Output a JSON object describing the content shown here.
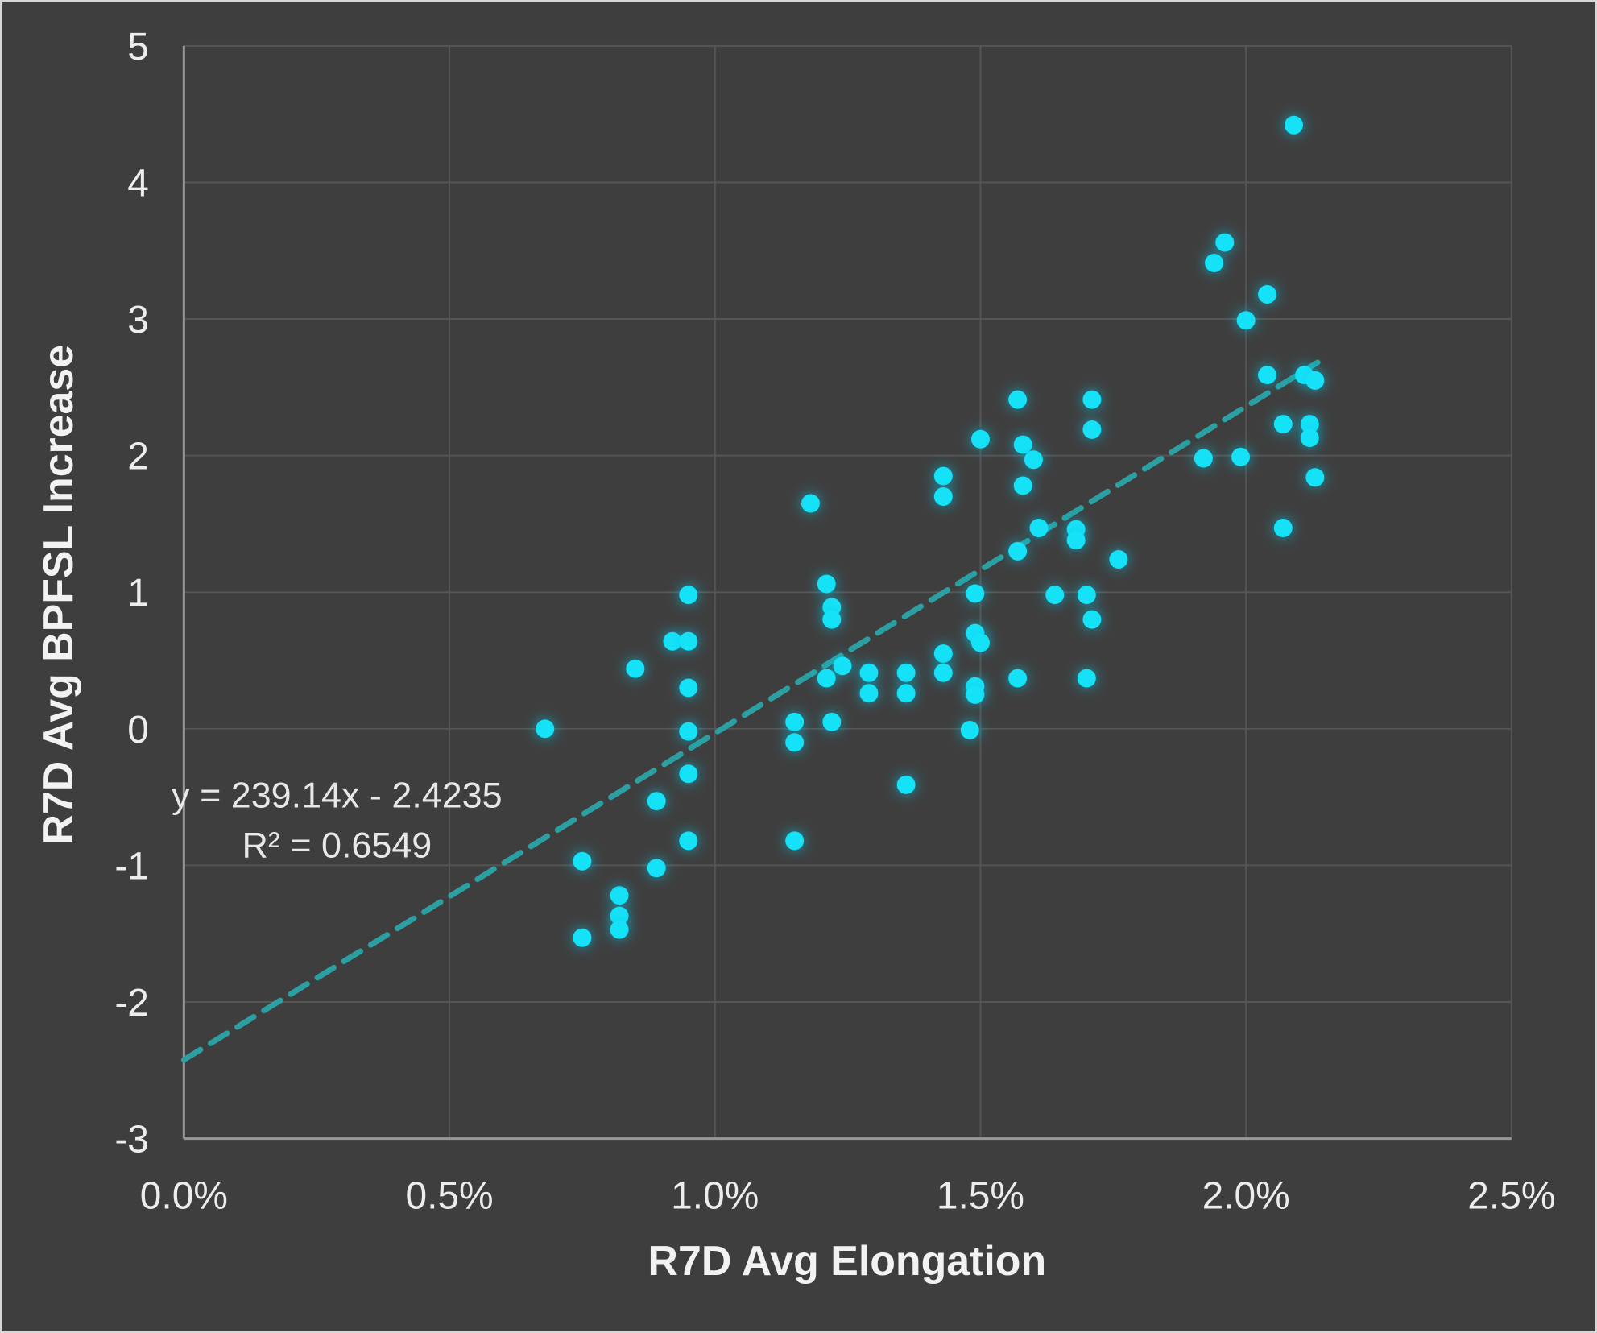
{
  "chart_data": {
    "type": "scatter",
    "title": "",
    "xlabel": "R7D Avg Elongation",
    "ylabel": "R7D Avg BPFSL Increase",
    "xlim": [
      0,
      2.5
    ],
    "ylim": [
      -3,
      5
    ],
    "grid": true,
    "legend_position": "none",
    "x_ticks": [
      {
        "value": 0.0,
        "label": "0.0%"
      },
      {
        "value": 0.5,
        "label": "0.5%"
      },
      {
        "value": 1.0,
        "label": "1.0%"
      },
      {
        "value": 1.5,
        "label": "1.5%"
      },
      {
        "value": 2.0,
        "label": "2.0%"
      },
      {
        "value": 2.5,
        "label": "2.5%"
      }
    ],
    "y_ticks": [
      {
        "value": 5,
        "label": "5"
      },
      {
        "value": 4,
        "label": "4"
      },
      {
        "value": 3,
        "label": "3"
      },
      {
        "value": 2,
        "label": "2"
      },
      {
        "value": 1,
        "label": "1"
      },
      {
        "value": 0,
        "label": "0"
      },
      {
        "value": -1,
        "label": "-1"
      },
      {
        "value": -2,
        "label": "-2"
      },
      {
        "value": -3,
        "label": "-3"
      }
    ],
    "series": [
      {
        "name": "R7D scatter",
        "marker": "circle-glow",
        "points": [
          [
            0.68,
            0.0
          ],
          [
            0.75,
            -0.97
          ],
          [
            0.75,
            -1.53
          ],
          [
            0.82,
            -1.22
          ],
          [
            0.82,
            -1.37
          ],
          [
            0.82,
            -1.47
          ],
          [
            0.85,
            0.44
          ],
          [
            0.89,
            -0.53
          ],
          [
            0.89,
            -1.02
          ],
          [
            0.92,
            0.64
          ],
          [
            0.95,
            0.98
          ],
          [
            0.95,
            0.64
          ],
          [
            0.95,
            0.3
          ],
          [
            0.95,
            -0.02
          ],
          [
            0.95,
            -0.33
          ],
          [
            0.95,
            -0.82
          ],
          [
            1.15,
            0.05
          ],
          [
            1.15,
            -0.1
          ],
          [
            1.15,
            -0.82
          ],
          [
            1.18,
            1.65
          ],
          [
            1.21,
            1.06
          ],
          [
            1.22,
            0.89
          ],
          [
            1.22,
            0.8
          ],
          [
            1.24,
            0.46
          ],
          [
            1.21,
            0.37
          ],
          [
            1.22,
            0.05
          ],
          [
            1.29,
            0.41
          ],
          [
            1.29,
            0.26
          ],
          [
            1.36,
            0.41
          ],
          [
            1.36,
            0.26
          ],
          [
            1.36,
            -0.41
          ],
          [
            1.43,
            1.85
          ],
          [
            1.43,
            1.7
          ],
          [
            1.43,
            0.55
          ],
          [
            1.43,
            0.41
          ],
          [
            1.49,
            0.99
          ],
          [
            1.49,
            0.7
          ],
          [
            1.5,
            0.63
          ],
          [
            1.49,
            0.31
          ],
          [
            1.49,
            0.25
          ],
          [
            1.48,
            -0.01
          ],
          [
            1.5,
            2.12
          ],
          [
            1.57,
            2.41
          ],
          [
            1.58,
            2.08
          ],
          [
            1.6,
            1.97
          ],
          [
            1.58,
            1.78
          ],
          [
            1.61,
            1.47
          ],
          [
            1.57,
            1.3
          ],
          [
            1.57,
            0.37
          ],
          [
            1.64,
            0.98
          ],
          [
            1.7,
            0.98
          ],
          [
            1.7,
            0.37
          ],
          [
            1.71,
            0.8
          ],
          [
            1.71,
            2.41
          ],
          [
            1.71,
            2.19
          ],
          [
            1.68,
            1.46
          ],
          [
            1.68,
            1.38
          ],
          [
            1.76,
            1.24
          ],
          [
            1.92,
            1.98
          ],
          [
            1.99,
            1.99
          ],
          [
            1.94,
            3.41
          ],
          [
            1.96,
            3.56
          ],
          [
            2.0,
            2.99
          ],
          [
            2.04,
            3.18
          ],
          [
            2.04,
            2.59
          ],
          [
            2.07,
            2.23
          ],
          [
            2.07,
            1.47
          ],
          [
            2.09,
            4.42
          ],
          [
            2.11,
            2.59
          ],
          [
            2.13,
            2.55
          ],
          [
            2.12,
            2.23
          ],
          [
            2.12,
            2.13
          ],
          [
            2.13,
            1.84
          ]
        ]
      }
    ],
    "trendline": {
      "style": "dashed",
      "equation_line1": "y = 239.14x - 2.4235",
      "equation_line2": "R² = 0.6549",
      "slope_per_unit_x": 239.14,
      "intercept": -2.4235,
      "x_start_pct": 0.0,
      "x_end_pct": 2.135
    },
    "colors": {
      "background": "#3E3E3E",
      "gridline": "#555555",
      "axis_line": "#979797",
      "tick_text": "#EDEDED",
      "title_text": "#F2F2F2",
      "equation_text": "#E8E8E8",
      "point_fill": "#12E2F7",
      "point_glow": "#00C9EE",
      "trendline": "#2B9FA1"
    }
  }
}
